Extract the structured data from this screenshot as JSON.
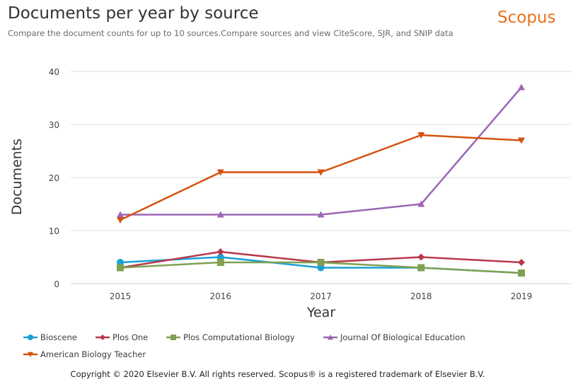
{
  "header": {
    "title": "Documents per year by source",
    "subtitle": "Compare the document counts for up to 10 sources.Compare sources and view CiteScore, SJR, and SNIP data",
    "logo": "Scopus",
    "logo_color": "#e9711c"
  },
  "footer": {
    "copyright": "Copyright © 2020 Elsevier B.V. All rights reserved. Scopus® is a registered trademark of Elsevier B.V."
  },
  "chart_data": {
    "type": "line",
    "title": "Documents per year by source",
    "xlabel": "Year",
    "ylabel": "Documents",
    "categories": [
      "2015",
      "2016",
      "2017",
      "2018",
      "2019"
    ],
    "ylim": [
      0,
      40
    ],
    "yticks": [
      "0",
      "10",
      "20",
      "30",
      "40"
    ],
    "grid": true,
    "legend_position": "bottom",
    "series": [
      {
        "name": "Bioscene",
        "color": "#1aa0d6",
        "marker": "circle",
        "values": [
          4,
          5,
          3,
          3,
          2
        ]
      },
      {
        "name": "Plos One",
        "color": "#b8394a",
        "marker": "diamond",
        "values": [
          3,
          6,
          4,
          5,
          4
        ]
      },
      {
        "name": "Plos Computational Biology",
        "color": "#7fa151",
        "marker": "square",
        "values": [
          3,
          4,
          4,
          3,
          2
        ]
      },
      {
        "name": "Journal Of Biological Education",
        "color": "#9b66b6",
        "marker": "triangle-up",
        "values": [
          13,
          13,
          13,
          15,
          37
        ]
      },
      {
        "name": "American Biology Teacher",
        "color": "#d4520e",
        "marker": "triangle-down",
        "values": [
          12,
          21,
          21,
          28,
          27
        ]
      }
    ]
  }
}
